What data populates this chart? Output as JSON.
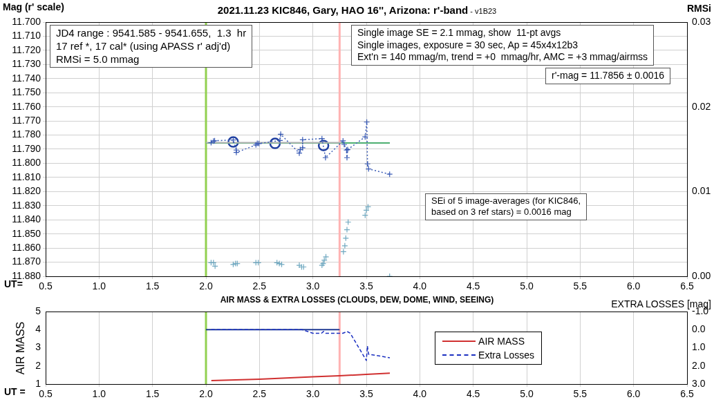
{
  "chart_data": [
    {
      "type": "line",
      "title": "2021.11.23 KIC846, Gary, HAO 16'', Arizona: r'-band",
      "subtitle": "- v1B23",
      "xlabel": "UT=",
      "ylabel": "Mag (r' scale)",
      "y2label": "RMSi",
      "xlim": [
        0.5,
        6.5
      ],
      "xticks": [
        0.5,
        {
          "value": 1,
          "label": "1.0"
        },
        1.5,
        {
          "value": 2,
          "label": "2.0"
        },
        2.5,
        {
          "value": 3,
          "label": "3.0"
        },
        3.5,
        {
          "value": 4,
          "label": "4.0"
        },
        4.5,
        {
          "value": 5,
          "label": "5.0"
        },
        5.5,
        {
          "value": 6,
          "label": "6.0"
        },
        6.5
      ],
      "ylim": [
        11.88,
        11.7
      ],
      "yticks": [
        {
          "value": 11.7,
          "label": "11.700"
        },
        {
          "value": 11.71,
          "label": "11.710"
        },
        {
          "value": 11.72,
          "label": "11.720"
        },
        {
          "value": 11.73,
          "label": "11.730"
        },
        {
          "value": 11.74,
          "label": "11.740"
        },
        {
          "value": 11.75,
          "label": "11.750"
        },
        {
          "value": 11.76,
          "label": "11.760"
        },
        {
          "value": 11.77,
          "label": "11.770"
        },
        {
          "value": 11.78,
          "label": "11.780"
        },
        {
          "value": 11.79,
          "label": "11.790"
        },
        {
          "value": 11.8,
          "label": "11.800"
        },
        {
          "value": 11.81,
          "label": "11.810"
        },
        {
          "value": 11.82,
          "label": "11.820"
        },
        {
          "value": 11.83,
          "label": "11.830"
        },
        {
          "value": 11.84,
          "label": "11.840"
        },
        {
          "value": 11.85,
          "label": "11.850"
        },
        {
          "value": 11.86,
          "label": "11.860"
        },
        {
          "value": 11.87,
          "label": "11.870"
        },
        {
          "value": 11.88,
          "label": "11.880"
        }
      ],
      "y2lim": [
        0,
        0.03
      ],
      "y2ticks": [
        {
          "value": 0,
          "label": "0.00"
        },
        0.01,
        0.02,
        0.03
      ],
      "grid": true,
      "legend": false,
      "series": [
        {
          "color": "#3a5bb5",
          "marker": "cross",
          "line_style": "dotted",
          "x": [
            2.048,
            2.07,
            2.081,
            2.255,
            2.284,
            2.284,
            2.467,
            2.48,
            2.495,
            2.692,
            2.699,
            2.873,
            2.882,
            2.904,
            2.904,
            3.085,
            3.118,
            3.282,
            3.293,
            3.315,
            3.319,
            3.325,
            3.489,
            3.504,
            3.511,
            3.521,
            3.718
          ],
          "values": [
            11.7854,
            11.7843,
            11.784,
            11.7835,
            11.7906,
            11.7923,
            11.787,
            11.7859,
            11.786,
            11.7838,
            11.7794,
            11.7928,
            11.7903,
            11.789,
            11.7833,
            11.7825,
            11.796,
            11.7841,
            11.7867,
            11.7906,
            11.796,
            11.7903,
            11.7813,
            11.7708,
            11.8004,
            11.804,
            11.8077
          ]
        },
        {
          "color": "#b4b4b4",
          "marker": "none",
          "line_style": "solid",
          "x": [
            2.0,
            3.27
          ],
          "values": [
            11.7853,
            11.7853
          ]
        },
        {
          "color": "#4caf70",
          "marker": "none",
          "line_style": "solid",
          "x": [
            2.0,
            3.72
          ],
          "values": [
            11.7856,
            11.7856
          ]
        },
        {
          "type": "scatter",
          "color": "#1f3fa0",
          "marker": "circle",
          "x": [
            2.255,
            2.646,
            3.1
          ],
          "values": [
            11.7849,
            11.7859,
            11.7874
          ]
        },
        {
          "type": "scatter",
          "color": "#6fa8c0",
          "marker": "cross",
          "axis": "y2",
          "x": [
            2.048,
            2.07,
            2.085,
            2.255,
            2.277,
            2.293,
            2.467,
            2.489,
            2.664,
            2.686,
            2.708,
            2.873,
            2.895,
            2.913,
            3.085,
            3.096,
            3.107,
            3.122,
            3.286,
            3.299,
            3.308,
            3.319,
            3.33,
            3.489,
            3.5,
            3.516,
            3.718
          ],
          "values": [
            0.0016,
            0.0016,
            0.0012,
            0.0014,
            0.0015,
            0.0015,
            0.0016,
            0.0016,
            0.0016,
            0.0015,
            0.0014,
            0.0013,
            0.0011,
            0.0011,
            0.0013,
            0.0015,
            0.0019,
            0.0023,
            0.0029,
            0.0036,
            0.0045,
            0.0055,
            0.0064,
            0.0072,
            0.0078,
            0.0082,
            0.0
          ]
        }
      ],
      "ref_lines": [
        {
          "axis": "x",
          "value": 2.0,
          "color": "#92d050"
        },
        {
          "axis": "x",
          "value": 3.25,
          "color": "#ffb3b3"
        }
      ],
      "annotations": [
        "JD4 range : 9541.585 - 9541.655,  1.3  hr\n17 ref *, 17 cal* (using APASS r' adj'd)\nRMSi = 5.0 mmag",
        "Single image SE = 2.1 mmag, show  11-pt avgs\nSingle images, exposure = 30 sec, Ap = 45x4x12b3\nExt'n = 140 mmag/m, trend = +0  mmag/hr, AMC = +3 mmag/airmss",
        "r'-mag = 11.7856 ± 0.0016",
        "SEi of 5 image-averages (for KIC846,\nbased on 3 ref stars) = 0.0016 mag"
      ]
    },
    {
      "type": "line",
      "title": "AIR MASS & EXTRA LOSSES (CLOUDS, DEW, DOME, WIND, SEEING)",
      "xlabel": "UT =",
      "ylabel": "AIR MASS",
      "y2label": "EXTRA LOSSES [mag]",
      "xlim": [
        0.5,
        6.5
      ],
      "xticks": [
        0.5,
        {
          "value": 1,
          "label": "1.0"
        },
        1.5,
        {
          "value": 2,
          "label": "2.0"
        },
        2.5,
        {
          "value": 3,
          "label": "3.0"
        },
        3.5,
        {
          "value": 4,
          "label": "4.0"
        },
        4.5,
        {
          "value": 5,
          "label": "5.0"
        },
        5.5,
        {
          "value": 6,
          "label": "6.0"
        },
        6.5
      ],
      "ylim": [
        1,
        5
      ],
      "yticks": [
        1,
        2,
        3,
        4,
        5
      ],
      "y2lim": [
        3,
        -1
      ],
      "y2ticks": [
        {
          "value": -1,
          "label": "-1.0"
        },
        {
          "value": 0,
          "label": "0.0"
        },
        {
          "value": 1,
          "label": "1.0"
        },
        {
          "value": 2,
          "label": "2.0"
        },
        {
          "value": 3,
          "label": "3.0"
        }
      ],
      "grid": "x",
      "legend": "right",
      "series": [
        {
          "name": "AIR MASS",
          "color": "#d03030",
          "line_style": "solid",
          "x": [
            2.05,
            2.5,
            3.0,
            3.25,
            3.5,
            3.72
          ],
          "values": [
            1.19,
            1.27,
            1.4,
            1.46,
            1.53,
            1.6
          ]
        },
        {
          "name": "Extra Losses",
          "color": "#1a2fc0",
          "line_style": "dashed",
          "axis": "y2",
          "x": [
            2.05,
            2.3,
            2.5,
            2.7,
            2.9,
            3.0,
            3.08,
            3.1,
            3.12,
            3.2,
            3.28,
            3.32,
            3.35,
            3.5,
            3.51,
            3.52,
            3.72
          ],
          "values": [
            0.0,
            0.0,
            0.0,
            0.0,
            0.0,
            0.2,
            0.2,
            0.1,
            0.2,
            0.2,
            0.2,
            0.1,
            0.2,
            1.7,
            0.9,
            1.35,
            1.55
          ]
        },
        {
          "color": "#1f3a93",
          "line_style": "solid",
          "axis": "y2",
          "x": [
            2.0,
            3.25
          ],
          "values": [
            0.0,
            0.0
          ]
        }
      ],
      "ref_lines": [
        {
          "axis": "x",
          "value": 2.0,
          "color": "#92d050"
        },
        {
          "axis": "x",
          "value": 3.25,
          "color": "#ffb3b3"
        }
      ]
    }
  ]
}
